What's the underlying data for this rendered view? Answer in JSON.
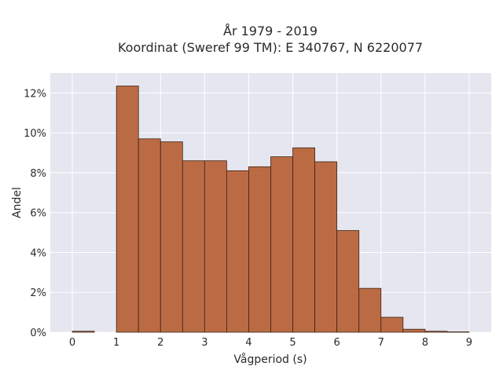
{
  "chart_data": {
    "type": "bar",
    "title_line1": "År 1979 - 2019",
    "title_line2": "Koordinat (Sweref 99 TM): E 340767, N 6220077",
    "xlabel": "Vågperiod (s)",
    "ylabel": "Andel",
    "xlim": [
      -0.5,
      9.5
    ],
    "ylim": [
      0,
      13
    ],
    "x_ticks": [
      0,
      1,
      2,
      3,
      4,
      5,
      6,
      7,
      8,
      9
    ],
    "y_ticks": [
      0,
      2,
      4,
      6,
      8,
      10,
      12
    ],
    "y_tick_labels": [
      "0%",
      "2%",
      "4%",
      "6%",
      "8%",
      "10%",
      "12%"
    ],
    "grid": true,
    "bar_color": "#b8643a",
    "bar_edge_color": "#3d2314",
    "plot_background": "#e5e6ef",
    "bin_width": 0.5,
    "bins": [
      {
        "start": 0.0,
        "value": 0.05
      },
      {
        "start": 1.0,
        "value": 12.35
      },
      {
        "start": 1.5,
        "value": 9.7
      },
      {
        "start": 2.0,
        "value": 9.55
      },
      {
        "start": 2.5,
        "value": 8.6
      },
      {
        "start": 3.0,
        "value": 8.6
      },
      {
        "start": 3.5,
        "value": 8.1
      },
      {
        "start": 4.0,
        "value": 8.3
      },
      {
        "start": 4.5,
        "value": 8.8
      },
      {
        "start": 5.0,
        "value": 9.25
      },
      {
        "start": 5.5,
        "value": 8.55
      },
      {
        "start": 6.0,
        "value": 5.1
      },
      {
        "start": 6.5,
        "value": 2.2
      },
      {
        "start": 7.0,
        "value": 0.75
      },
      {
        "start": 7.5,
        "value": 0.15
      },
      {
        "start": 8.0,
        "value": 0.05
      },
      {
        "start": 8.5,
        "value": 0.02
      }
    ]
  }
}
